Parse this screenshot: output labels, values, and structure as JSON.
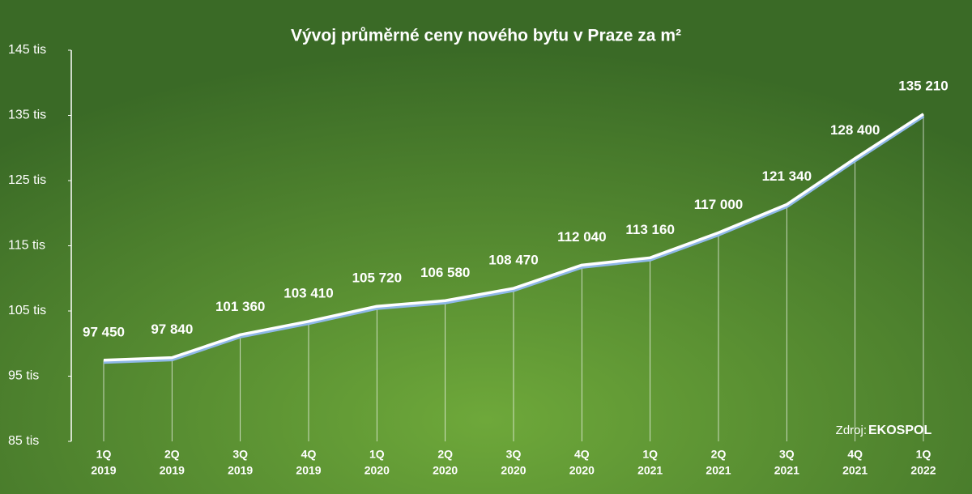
{
  "chart_data": {
    "type": "line",
    "title": "Vývoj průměrné ceny nového bytu v Praze za m²",
    "categories": [
      [
        "1Q",
        "2019"
      ],
      [
        "2Q",
        "2019"
      ],
      [
        "3Q",
        "2019"
      ],
      [
        "4Q",
        "2019"
      ],
      [
        "1Q",
        "2020"
      ],
      [
        "2Q",
        "2020"
      ],
      [
        "3Q",
        "2020"
      ],
      [
        "4Q",
        "2020"
      ],
      [
        "1Q",
        "2021"
      ],
      [
        "2Q",
        "2021"
      ],
      [
        "3Q",
        "2021"
      ],
      [
        "4Q",
        "2021"
      ],
      [
        "1Q",
        "2022"
      ]
    ],
    "series": [
      {
        "color": "#ffffff",
        "values": [
          97450,
          97840,
          101360,
          103410,
          105720,
          106580,
          108470,
          112040,
          113160,
          117000,
          121340,
          128400,
          135210
        ],
        "value_labels": [
          "97 450",
          "97 840",
          "101 360",
          "103 410",
          "105 720",
          "106 580",
          "108 470",
          "112 040",
          "113 160",
          "117 000",
          "121 340",
          "128 400",
          "135 210"
        ]
      }
    ],
    "ylim": [
      85000,
      145000
    ],
    "yticks": [
      {
        "value": 85000,
        "label": "85 tis"
      },
      {
        "value": 95000,
        "label": "95 tis"
      },
      {
        "value": 105000,
        "label": "105 tis"
      },
      {
        "value": 115000,
        "label": "115 tis"
      },
      {
        "value": 125000,
        "label": "125 tis"
      },
      {
        "value": 135000,
        "label": "135 tis"
      },
      {
        "value": 145000,
        "label": "145 tis"
      }
    ],
    "source": {
      "prefix": "Zdroj:",
      "name": "EKOSPOL"
    }
  }
}
